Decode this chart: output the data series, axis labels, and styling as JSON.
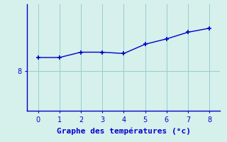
{
  "x": [
    0,
    1,
    2,
    3,
    4,
    5,
    6,
    7,
    8
  ],
  "y": [
    8.5,
    8.5,
    8.7,
    8.7,
    8.65,
    9.0,
    9.2,
    9.45,
    9.6
  ],
  "line_color": "#0000cc",
  "marker": "+",
  "marker_size": 4,
  "marker_linewidth": 1.2,
  "line_width": 1.0,
  "background_color": "#d6f0ec",
  "grid_color": "#99cccc",
  "axis_color": "#0000cc",
  "xlabel": "Graphe des températures (°c)",
  "xlabel_fontsize": 8,
  "xlabel_color": "#0000cc",
  "tick_color": "#0000cc",
  "tick_labelsize": 7,
  "xlim": [
    -0.5,
    8.5
  ],
  "ylim": [
    6.5,
    10.5
  ],
  "yticks": [
    8
  ],
  "xticks": [
    0,
    1,
    2,
    3,
    4,
    5,
    6,
    7,
    8
  ]
}
